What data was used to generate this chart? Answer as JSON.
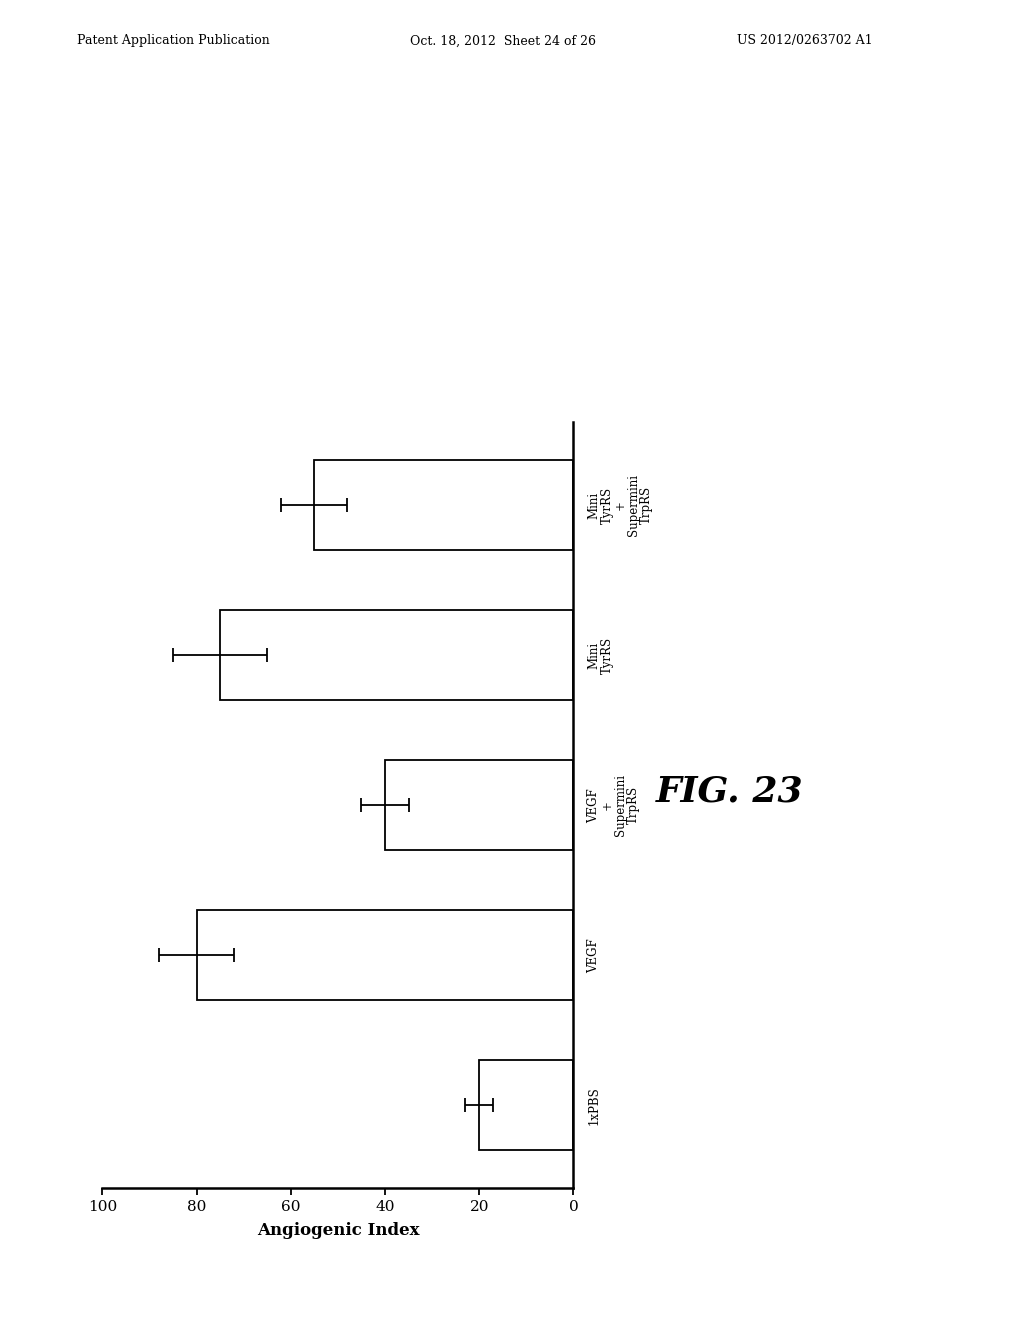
{
  "categories": [
    "1xPBS",
    "VEGF",
    "VEGF\n+\nSupermini\nTrpRS",
    "Mini\nTyrRS",
    "Mini\nTyrRS\n+\nSupermini\nTrpRS"
  ],
  "values": [
    20,
    80,
    40,
    75,
    55
  ],
  "errors": [
    3,
    8,
    5,
    10,
    7
  ],
  "xlabel": "Angiogenic Index",
  "xticks": [
    0,
    20,
    40,
    60,
    80,
    100
  ],
  "xticklabels": [
    "0",
    "20",
    "40",
    "60",
    "80",
    "100"
  ],
  "bar_color": "#ffffff",
  "bar_edgecolor": "#000000",
  "background_color": "#ffffff",
  "fig_width": 10.24,
  "fig_height": 13.2,
  "fig_label": "FIG. 23",
  "header_line1": "Patent Application Publication",
  "header_line2": "Oct. 18, 2012  Sheet 24 of 26",
  "header_line3": "US 2012/0263702 A1"
}
